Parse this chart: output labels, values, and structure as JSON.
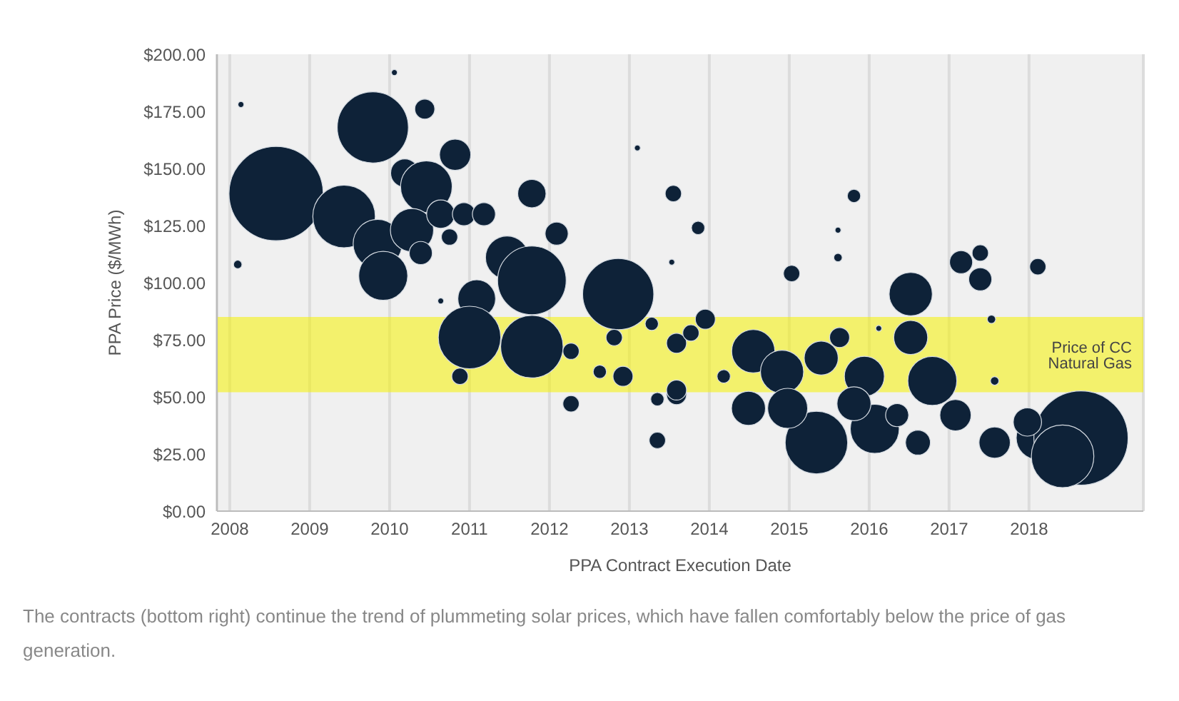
{
  "chart_data": {
    "type": "bubble",
    "xlabel": "PPA Contract Execution Date",
    "ylabel": "PPA Price ($/MWh)",
    "xlim": [
      2007.84,
      2019.43
    ],
    "xticks": [
      2008,
      2009,
      2010,
      2011,
      2012,
      2013,
      2014,
      2015,
      2016,
      2017,
      2018
    ],
    "ylim": [
      0,
      200
    ],
    "yticks": [
      {
        "value": 0,
        "label": "$0.00"
      },
      {
        "value": 25,
        "label": "$25.00"
      },
      {
        "value": 50,
        "label": "$50.00"
      },
      {
        "value": 75,
        "label": "$75.00"
      },
      {
        "value": 100,
        "label": "$100.00"
      },
      {
        "value": 125,
        "label": "$125.00"
      },
      {
        "value": 150,
        "label": "$150.00"
      },
      {
        "value": 175,
        "label": "$175.00"
      },
      {
        "value": 200,
        "label": "$200.00"
      }
    ],
    "grid": "x",
    "legend": false,
    "series": [
      {
        "color": "#0e2238",
        "x": [
          2008.14,
          2008.58,
          2008.1,
          2010.06,
          2009.79,
          2010.44,
          2009.43,
          2010.82,
          2010.19,
          2010.46,
          2009.85,
          2009.92,
          2010.28,
          2010.64,
          2010.93,
          2011.18,
          2010.39,
          2010.75,
          2011.78,
          2012.09,
          2011.47,
          2011.78,
          2011.09,
          2012.86,
          2013.1,
          2013.55,
          2013.53,
          2010.64,
          2011.0,
          2011.78,
          2012.27,
          2010.88,
          2012.27,
          2012.92,
          2012.81,
          2012.63,
          2013.28,
          2013.35,
          2013.59,
          2013.35,
          2013.59,
          2013.86,
          2015.81,
          2015.61,
          2015.61,
          2015.03,
          2013.95,
          2013.77,
          2013.59,
          2016.52,
          2016.52,
          2017.15,
          2017.39,
          2017.39,
          2018.11,
          2017.53,
          2017.57,
          2016.12,
          2014.55,
          2014.91,
          2015.4,
          2015.94,
          2016.79,
          2014.18,
          2015.63,
          2014.49,
          2015.34,
          2014.98,
          2016.07,
          2015.81,
          2016.61,
          2017.08,
          2016.35,
          2017.57,
          2018.11,
          2018.65,
          2018.42,
          2017.98
        ],
        "values": [
          178,
          139,
          108,
          192,
          168,
          176,
          129,
          156,
          148,
          142,
          117,
          103,
          123,
          130,
          130,
          130,
          113,
          120,
          139,
          121.5,
          111,
          101,
          93,
          95,
          159,
          139,
          109,
          92,
          76,
          72,
          70,
          59,
          47,
          59,
          76,
          61,
          82,
          31,
          51,
          49,
          73.5,
          124,
          138,
          123,
          111,
          104,
          84,
          78,
          53,
          95,
          76,
          109,
          113,
          101.5,
          107,
          84,
          57,
          80,
          70,
          61,
          67,
          59,
          57,
          59,
          76,
          45,
          30,
          45,
          36,
          47,
          30,
          42,
          42,
          30,
          32,
          32,
          24,
          39
        ],
        "sizes": [
          0.004,
          1,
          0.008,
          0.004,
          0.57,
          0.045,
          0.44,
          0.11,
          0.09,
          0.3,
          0.27,
          0.27,
          0.21,
          0.09,
          0.06,
          0.06,
          0.06,
          0.03,
          0.09,
          0.06,
          0.21,
          0.53,
          0.16,
          0.57,
          0.004,
          0.03,
          0.004,
          0.004,
          0.44,
          0.44,
          0.03,
          0.03,
          0.03,
          0.045,
          0.03,
          0.02,
          0.02,
          0.03,
          0.045,
          0.02,
          0.045,
          0.02,
          0.02,
          0.004,
          0.008,
          0.03,
          0.045,
          0.03,
          0.045,
          0.21,
          0.13,
          0.06,
          0.03,
          0.06,
          0.03,
          0.008,
          0.008,
          0.004,
          0.21,
          0.21,
          0.13,
          0.18,
          0.27,
          0.02,
          0.045,
          0.13,
          0.44,
          0.18,
          0.27,
          0.13,
          0.07,
          0.11,
          0.06,
          0.11,
          0.21,
          1,
          0.44,
          0.09
        ]
      }
    ],
    "bands": [
      {
        "axis": "y",
        "from": 52,
        "to": 85,
        "label": "Price of CC Natural Gas",
        "color": "#f5f200"
      }
    ],
    "annotations": [
      "The contracts (bottom right) continue the trend of plummeting solar prices, which have fallen comfortably below the price of gas generation."
    ]
  }
}
